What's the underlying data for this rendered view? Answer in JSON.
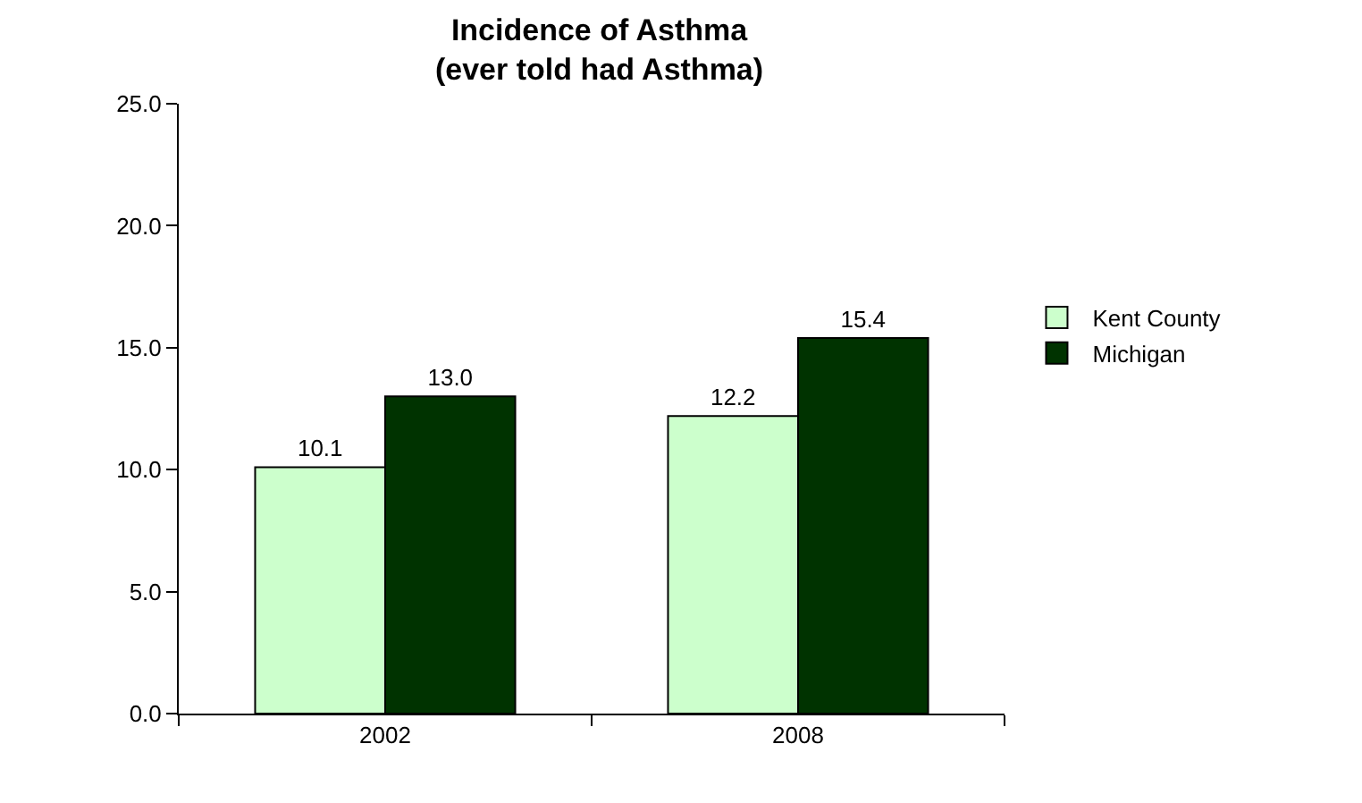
{
  "chart_data": {
    "type": "bar",
    "title": "Incidence of Asthma\n(ever told had Asthma)",
    "categories": [
      "2002",
      "2008"
    ],
    "series": [
      {
        "name": "Kent County",
        "color": "#ccffcc",
        "values": [
          10.1,
          12.2
        ],
        "value_labels": [
          "10.1",
          "12.2"
        ]
      },
      {
        "name": "Michigan",
        "color": "#003300",
        "values": [
          13.0,
          15.4
        ],
        "value_labels": [
          "13.0",
          "15.4"
        ]
      }
    ],
    "ylim": [
      0,
      25
    ],
    "yticks": [
      {
        "value": 0,
        "label": "0.0"
      },
      {
        "value": 5,
        "label": "5.0"
      },
      {
        "value": 10,
        "label": "10.0"
      },
      {
        "value": 15,
        "label": "15.0"
      },
      {
        "value": 20,
        "label": "20.0"
      },
      {
        "value": 25,
        "label": "25.0"
      }
    ],
    "grid": false,
    "legend": "right"
  }
}
